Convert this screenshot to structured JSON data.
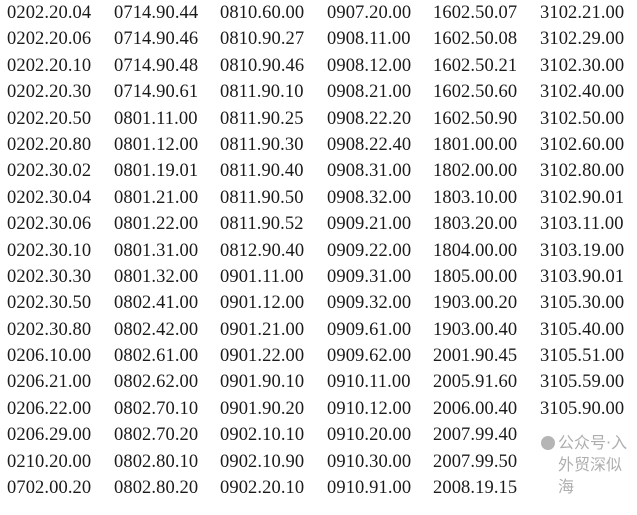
{
  "columns": [
    [
      "0202.20.04",
      "0202.20.06",
      "0202.20.10",
      "0202.20.30",
      "0202.20.50",
      "0202.20.80",
      "0202.30.02",
      "0202.30.04",
      "0202.30.06",
      "0202.30.10",
      "0202.30.30",
      "0202.30.50",
      "0202.30.80",
      "0206.10.00",
      "0206.21.00",
      "0206.22.00",
      "0206.29.00",
      "0210.20.00",
      "0702.00.20"
    ],
    [
      "0714.90.44",
      "0714.90.46",
      "0714.90.48",
      "0714.90.61",
      "0801.11.00",
      "0801.12.00",
      "0801.19.01",
      "0801.21.00",
      "0801.22.00",
      "0801.31.00",
      "0801.32.00",
      "0802.41.00",
      "0802.42.00",
      "0802.61.00",
      "0802.62.00",
      "0802.70.10",
      "0802.70.20",
      "0802.80.10",
      "0802.80.20"
    ],
    [
      "0810.60.00",
      "0810.90.27",
      "0810.90.46",
      "0811.90.10",
      "0811.90.25",
      "0811.90.30",
      "0811.90.40",
      "0811.90.50",
      "0811.90.52",
      "0812.90.40",
      "0901.11.00",
      "0901.12.00",
      "0901.21.00",
      "0901.22.00",
      "0901.90.10",
      "0901.90.20",
      "0902.10.10",
      "0902.10.90",
      "0902.20.10"
    ],
    [
      "0907.20.00",
      "0908.11.00",
      "0908.12.00",
      "0908.21.00",
      "0908.22.20",
      "0908.22.40",
      "0908.31.00",
      "0908.32.00",
      "0909.21.00",
      "0909.22.00",
      "0909.31.00",
      "0909.32.00",
      "0909.61.00",
      "0909.62.00",
      "0910.11.00",
      "0910.12.00",
      "0910.20.00",
      "0910.30.00",
      "0910.91.00"
    ],
    [
      "1602.50.07",
      "1602.50.08",
      "1602.50.21",
      "1602.50.60",
      "1602.50.90",
      "1801.00.00",
      "1802.00.00",
      "1803.10.00",
      "1803.20.00",
      "1804.00.00",
      "1805.00.00",
      "1903.00.20",
      "1903.00.40",
      "2001.90.45",
      "2005.91.60",
      "2006.00.40",
      "2007.99.40",
      "2007.99.50",
      "2008.19.15"
    ],
    [
      "3102.21.00",
      "3102.29.00",
      "3102.30.00",
      "3102.40.00",
      "3102.50.00",
      "3102.60.00",
      "3102.80.00",
      "3102.90.01",
      "3103.11.00",
      "3103.19.00",
      "3103.90.01",
      "3105.30.00",
      "3105.40.00",
      "3105.51.00",
      "3105.59.00",
      "3105.90.00"
    ]
  ],
  "watermark": "公众号·入外贸深似海"
}
